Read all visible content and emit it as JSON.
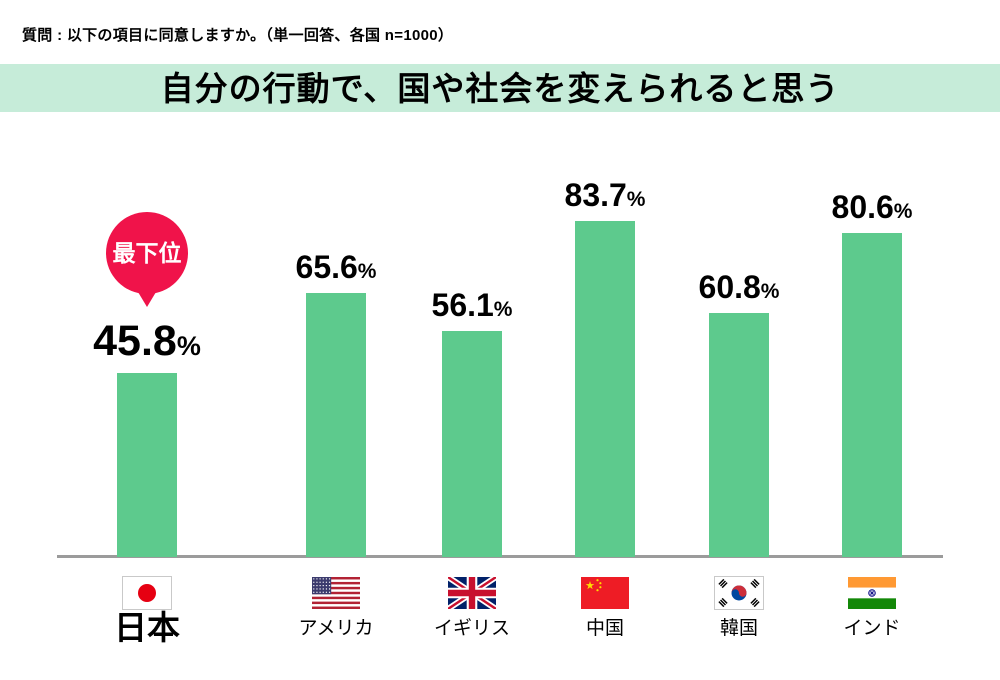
{
  "question": "質問 : 以下の項目に同意しますか。（単一回答、各国 n=1000）",
  "banner_title": "自分の行動で、国や社会を変えられると思う",
  "badge": {
    "label": "最下位"
  },
  "chart_data": {
    "type": "bar",
    "title": "自分の行動で、国や社会を変えられると思う",
    "categories": [
      "日本",
      "アメリカ",
      "イギリス",
      "中国",
      "韓国",
      "インド"
    ],
    "values": [
      45.8,
      65.6,
      56.1,
      83.7,
      60.8,
      80.6
    ],
    "unit": "%",
    "ylim": [
      0,
      100
    ],
    "grid": false,
    "legend": false,
    "highlight_index": 0,
    "annotation": {
      "index": 0,
      "label": "最下位"
    },
    "flags": [
      "jp",
      "us",
      "uk",
      "cn",
      "kr",
      "in"
    ]
  },
  "colors": {
    "bar": "#5dca8d",
    "banner_bg": "#c6ecd9",
    "badge_bg": "#f0134a",
    "axis": "#9b9b9b",
    "text": "#000000"
  }
}
